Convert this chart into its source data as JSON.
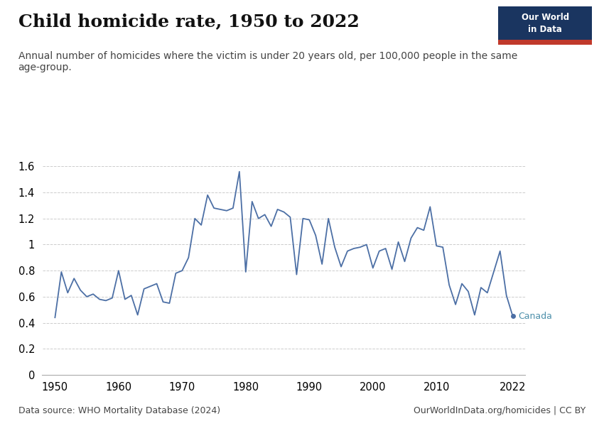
{
  "title": "Child homicide rate, 1950 to 2022",
  "subtitle": "Annual number of homicides where the victim is under 20 years old, per 100,000 people in the same\nage-group.",
  "source": "Data source: WHO Mortality Database (2024)",
  "source_right": "OurWorldInData.org/homicides | CC BY",
  "country_label": "Canada",
  "line_color": "#4C6FA5",
  "label_color": "#4C8FAA",
  "background_color": "#ffffff",
  "logo_bg": "#1a3560",
  "logo_red": "#c0392b",
  "years": [
    1950,
    1951,
    1952,
    1953,
    1954,
    1955,
    1956,
    1957,
    1958,
    1959,
    1960,
    1961,
    1962,
    1963,
    1964,
    1965,
    1966,
    1967,
    1968,
    1969,
    1970,
    1971,
    1972,
    1973,
    1974,
    1975,
    1976,
    1977,
    1978,
    1979,
    1980,
    1981,
    1982,
    1983,
    1984,
    1985,
    1986,
    1987,
    1988,
    1989,
    1990,
    1991,
    1992,
    1993,
    1994,
    1995,
    1996,
    1997,
    1998,
    1999,
    2000,
    2001,
    2002,
    2003,
    2004,
    2005,
    2006,
    2007,
    2008,
    2009,
    2010,
    2011,
    2012,
    2013,
    2014,
    2015,
    2016,
    2017,
    2018,
    2019,
    2020,
    2021,
    2022
  ],
  "values": [
    0.44,
    0.79,
    0.63,
    0.74,
    0.65,
    0.6,
    0.62,
    0.58,
    0.57,
    0.59,
    0.8,
    0.58,
    0.61,
    0.46,
    0.66,
    0.68,
    0.7,
    0.56,
    0.55,
    0.78,
    0.8,
    0.9,
    1.2,
    1.15,
    1.38,
    1.28,
    1.27,
    1.26,
    1.28,
    1.56,
    0.79,
    1.33,
    1.2,
    1.23,
    1.14,
    1.27,
    1.25,
    1.21,
    0.77,
    1.2,
    1.19,
    1.07,
    0.85,
    1.2,
    0.98,
    0.83,
    0.95,
    0.97,
    0.98,
    1.0,
    0.82,
    0.95,
    0.97,
    0.81,
    1.02,
    0.87,
    1.05,
    1.13,
    1.11,
    1.29,
    0.99,
    0.98,
    0.69,
    0.54,
    0.7,
    0.64,
    0.46,
    0.67,
    0.63,
    0.79,
    0.95,
    0.61,
    0.45
  ],
  "ylim": [
    0,
    1.7
  ],
  "yticks": [
    0,
    0.2,
    0.4,
    0.6,
    0.8,
    1.0,
    1.2,
    1.4,
    1.6
  ],
  "xlim": [
    1948,
    2024
  ],
  "xticks": [
    1950,
    1960,
    1970,
    1980,
    1990,
    2000,
    2010,
    2022
  ]
}
